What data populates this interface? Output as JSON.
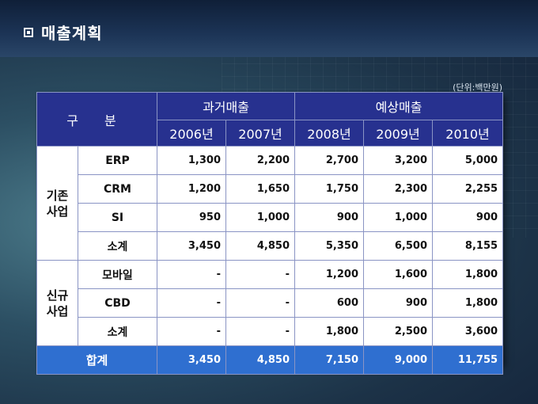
{
  "slide": {
    "title": "매출계획",
    "unit": "(단위:백만원)"
  },
  "table": {
    "header_gubun": "구 분",
    "group_past": "과거매출",
    "group_forecast": "예상매출",
    "years": [
      "2006년",
      "2007년",
      "2008년",
      "2009년",
      "2010년"
    ],
    "sections": [
      {
        "label_line1": "기존",
        "label_line2": "사업",
        "rows": [
          {
            "item": "ERP",
            "values": [
              "1,300",
              "2,200",
              "2,700",
              "3,200",
              "5,000"
            ]
          },
          {
            "item": "CRM",
            "values": [
              "1,200",
              "1,650",
              "1,750",
              "2,300",
              "2,255"
            ]
          },
          {
            "item": "SI",
            "values": [
              "950",
              "1,000",
              "900",
              "1,000",
              "900"
            ]
          },
          {
            "item": "소계",
            "values": [
              "3,450",
              "4,850",
              "5,350",
              "6,500",
              "8,155"
            ]
          }
        ]
      },
      {
        "label_line1": "신규",
        "label_line2": "사업",
        "rows": [
          {
            "item": "모바일",
            "values": [
              "-",
              "-",
              "1,200",
              "1,600",
              "1,800"
            ]
          },
          {
            "item": "CBD",
            "values": [
              "-",
              "-",
              "600",
              "900",
              "1,800"
            ]
          },
          {
            "item": "소계",
            "values": [
              "-",
              "-",
              "1,800",
              "2,500",
              "3,600"
            ]
          }
        ]
      }
    ],
    "total": {
      "label": "합계",
      "values": [
        "3,450",
        "4,850",
        "7,150",
        "9,000",
        "11,755"
      ]
    }
  },
  "colors": {
    "header_bg": "#27318f",
    "total_bg": "#2f6fd0",
    "background": "#2c4f63"
  }
}
